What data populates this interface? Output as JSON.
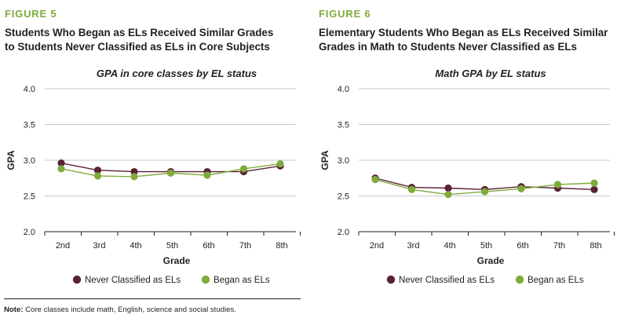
{
  "figures": [
    {
      "label": "FIGURE 5",
      "title_line1": "Students Who Began as ELs Received Similar Grades",
      "title_line2": "to Students Never Classified as ELs in Core Subjects"
    },
    {
      "label": "FIGURE 6",
      "title_line1": "Elementary Students Who Began as ELs Received Similar",
      "title_line2": "Grades in Math to Students Never Classified as ELs"
    }
  ],
  "note": {
    "label": "Note:",
    "text": "Core classes include math, English, science and social studies."
  },
  "colors": {
    "never": "#5a2333",
    "began": "#7fab3c",
    "grid": "#c8c8c8",
    "axis": "#231f20"
  },
  "chart_data": [
    {
      "type": "line",
      "title": "GPA in core classes by EL status",
      "xlabel": "Grade",
      "ylabel": "GPA",
      "categories": [
        "2nd",
        "3rd",
        "4th",
        "5th",
        "6th",
        "7th",
        "8th"
      ],
      "ylim": [
        2.0,
        4.0
      ],
      "yticks": [
        "2.0",
        "2.5",
        "3.0",
        "3.5",
        "4.0"
      ],
      "grid": true,
      "legend_position": "bottom",
      "series": [
        {
          "name": "Never Classified as ELs",
          "values": [
            2.96,
            2.86,
            2.84,
            2.84,
            2.84,
            2.84,
            2.92
          ]
        },
        {
          "name": "Began as ELs",
          "values": [
            2.88,
            2.78,
            2.77,
            2.82,
            2.79,
            2.88,
            2.95
          ]
        }
      ]
    },
    {
      "type": "line",
      "title": "Math GPA by EL status",
      "xlabel": "Grade",
      "ylabel": "GPA",
      "categories": [
        "2nd",
        "3rd",
        "4th",
        "5th",
        "6th",
        "7th",
        "8th"
      ],
      "ylim": [
        2.0,
        4.0
      ],
      "yticks": [
        "2.0",
        "2.5",
        "3.0",
        "3.5",
        "4.0"
      ],
      "grid": true,
      "legend_position": "bottom",
      "series": [
        {
          "name": "Never Classified as ELs",
          "values": [
            2.75,
            2.62,
            2.61,
            2.59,
            2.63,
            2.61,
            2.59
          ]
        },
        {
          "name": "Began as ELs",
          "values": [
            2.73,
            2.59,
            2.52,
            2.56,
            2.6,
            2.66,
            2.68
          ]
        }
      ]
    }
  ]
}
